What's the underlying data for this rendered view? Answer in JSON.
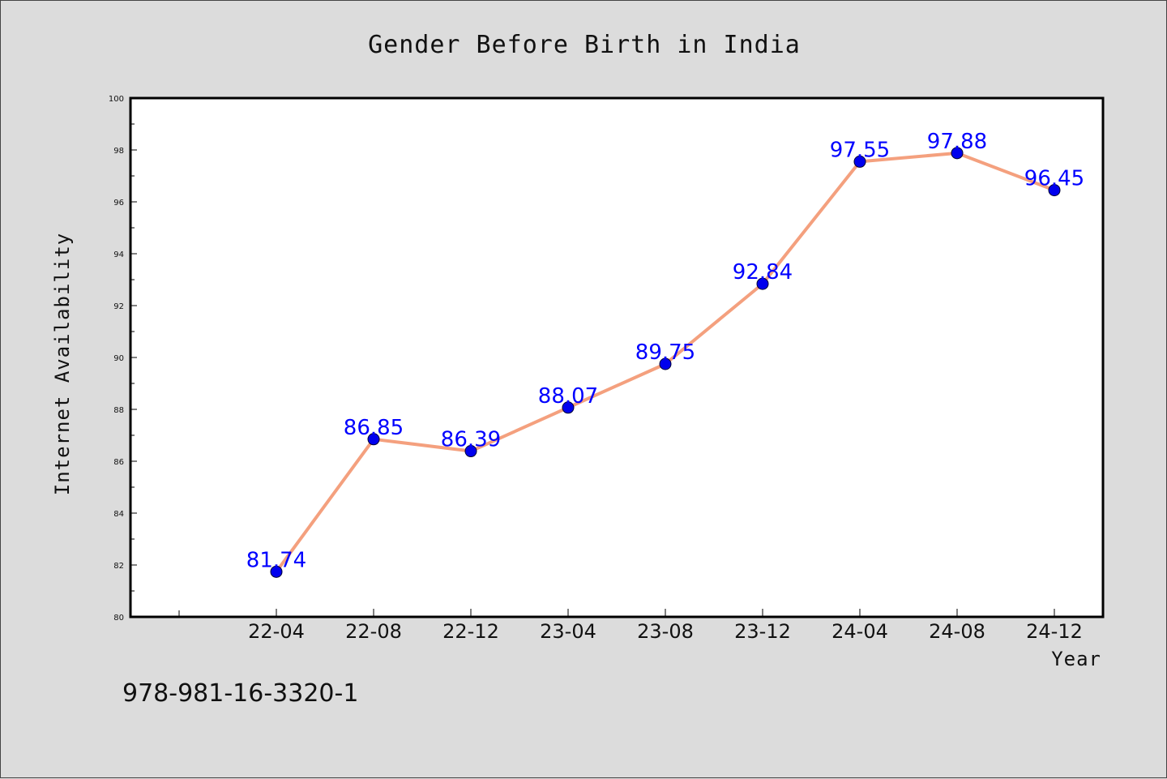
{
  "chart_data": {
    "type": "line",
    "title": "Gender Before Birth in India",
    "xlabel": "Year",
    "ylabel": "Internet Availability",
    "categories": [
      "22-04",
      "22-08",
      "22-12",
      "23-04",
      "23-08",
      "23-12",
      "24-04",
      "24-08",
      "24-12"
    ],
    "series": [
      {
        "values": [
          81.74,
          86.85,
          86.39,
          88.07,
          89.75,
          92.84,
          97.55,
          97.88,
          96.45
        ],
        "line_color": "#f4a07e",
        "marker_color": "#0000ee",
        "label_color": "#0000ff"
      }
    ],
    "ylim": [
      80,
      100
    ],
    "yticks": [
      80,
      82,
      84,
      86,
      88,
      90,
      92,
      94,
      96,
      98,
      100
    ],
    "grid": false,
    "legend": "none"
  },
  "footer_text": "978-981-16-3320-1"
}
